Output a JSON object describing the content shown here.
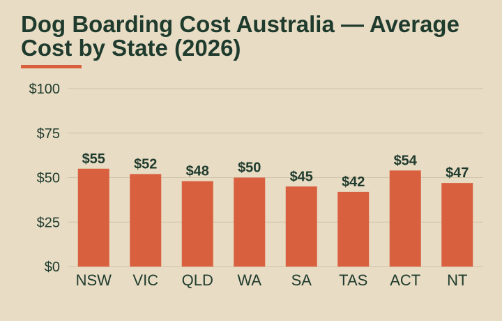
{
  "title": "Dog Boarding Cost Australia — Average Cost by State (2026)",
  "colors": {
    "background": "#e8dcc4",
    "title": "#1f3b2d",
    "accent": "#d9603f",
    "bar": "#d9603f",
    "grid": "#cfc2a8",
    "tick_label": "#1f3b2d",
    "value_label": "#1f3b2d"
  },
  "chart_data": {
    "type": "bar",
    "title": "Dog Boarding Cost Australia — Average Cost by State (2026)",
    "xlabel": "",
    "ylabel": "",
    "categories": [
      "NSW",
      "VIC",
      "QLD",
      "WA",
      "SA",
      "TAS",
      "ACT",
      "NT"
    ],
    "values": [
      55,
      52,
      48,
      50,
      45,
      42,
      54,
      47
    ],
    "value_labels": [
      "$55",
      "$52",
      "$48",
      "$50",
      "$45",
      "$42",
      "$54",
      "$47"
    ],
    "ylim": [
      0,
      100
    ],
    "yticks": [
      0,
      25,
      50,
      75,
      100
    ],
    "ytick_labels": [
      "$0",
      "$25",
      "$50",
      "$75",
      "$100"
    ],
    "grid": "horizontal",
    "legend": "none"
  }
}
